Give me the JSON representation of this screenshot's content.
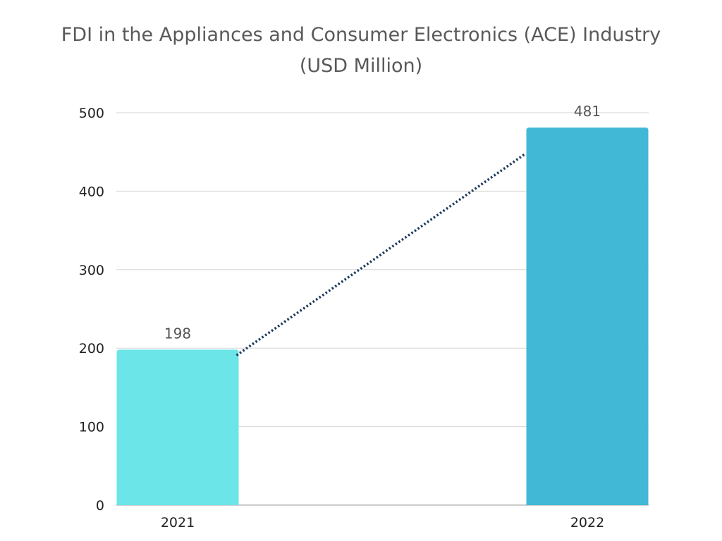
{
  "chart_data": {
    "type": "bar",
    "title_line1": "FDI in the Appliances and Consumer Electronics (ACE) Industry",
    "title_line2": "(USD Million)",
    "categories": [
      "2021",
      "2022"
    ],
    "values": [
      198,
      481
    ],
    "value_labels": [
      "198",
      "481"
    ],
    "bar_colors": [
      "#6BE5E8",
      "#41B8D5"
    ],
    "trend_color": "#1B3A5C",
    "trendline": "dotted",
    "ylim": [
      0,
      500
    ],
    "yticks": [
      0,
      100,
      200,
      300,
      400,
      500
    ],
    "ytick_labels": [
      "0",
      "100",
      "200",
      "300",
      "400",
      "500"
    ],
    "xlabel": "",
    "ylabel": "",
    "grid": true,
    "legend": "none"
  }
}
